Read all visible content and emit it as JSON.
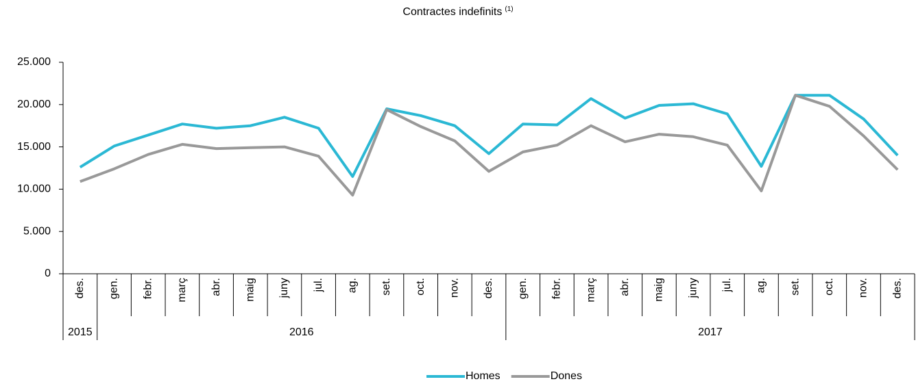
{
  "chart_data": {
    "type": "line",
    "title": "Contractes indefinits",
    "title_note": "(1)",
    "year_groups": [
      {
        "label": "2015",
        "months": [
          "des."
        ]
      },
      {
        "label": "2016",
        "months": [
          "gen.",
          "febr.",
          "març",
          "abr.",
          "maig",
          "juny",
          "jul.",
          "ag.",
          "set.",
          "oct.",
          "nov.",
          "des."
        ]
      },
      {
        "label": "2017",
        "months": [
          "gen.",
          "febr.",
          "març",
          "abr.",
          "maig",
          "juny",
          "jul.",
          "ag.",
          "set.",
          "oct.",
          "nov.",
          "des."
        ]
      }
    ],
    "series": [
      {
        "name": "Homes",
        "color": "#2bb8d4",
        "values": [
          12600,
          15100,
          16400,
          17700,
          17200,
          17500,
          18500,
          17200,
          11500,
          19500,
          18700,
          17500,
          14200,
          17700,
          17600,
          20700,
          18400,
          19900,
          20100,
          18900,
          12700,
          21100,
          21100,
          18300,
          14000
        ]
      },
      {
        "name": "Dones",
        "color": "#999999",
        "values": [
          10900,
          12400,
          14100,
          15300,
          14800,
          14900,
          15000,
          13900,
          9300,
          19400,
          17400,
          15700,
          12100,
          14400,
          15200,
          17500,
          15600,
          16500,
          16200,
          15200,
          9800,
          21100,
          19800,
          16300,
          12300
        ]
      }
    ],
    "ylim": [
      0,
      25000
    ],
    "yticks": [
      0,
      {
        "value": 5000,
        "label": "5.000"
      },
      {
        "value": 10000,
        "label": "10.000"
      },
      {
        "value": 15000,
        "label": "15.000"
      },
      {
        "value": 20000,
        "label": "20.000"
      },
      {
        "value": 25000,
        "label": "25.000"
      }
    ],
    "legend": "bottom"
  }
}
